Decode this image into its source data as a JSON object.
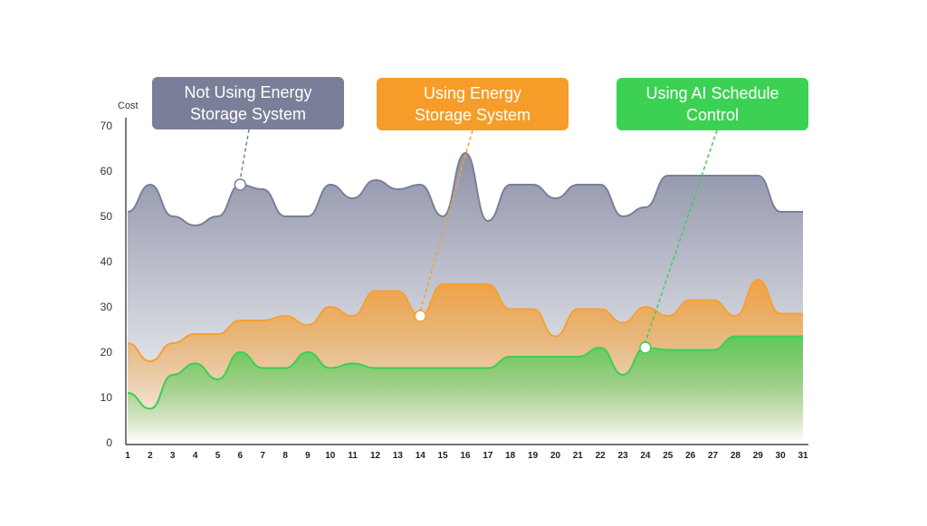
{
  "chart_data": {
    "type": "area",
    "ylabel": "Cost",
    "ylim": [
      0,
      70
    ],
    "yticks": [
      0,
      10,
      20,
      30,
      40,
      50,
      60,
      70
    ],
    "x": [
      1,
      2,
      3,
      4,
      5,
      6,
      7,
      8,
      9,
      10,
      11,
      12,
      13,
      14,
      15,
      16,
      17,
      18,
      19,
      20,
      21,
      22,
      23,
      24,
      25,
      26,
      27,
      28,
      29,
      30,
      31
    ],
    "grid": false,
    "series": [
      {
        "name": "Not Using Energy Storage System",
        "color": "#7a7f99",
        "values": [
          51,
          57,
          50,
          48,
          50,
          57,
          56,
          50,
          50,
          57,
          54,
          58,
          56,
          57,
          50,
          64,
          49,
          57,
          57,
          54,
          57,
          57,
          50,
          52,
          59,
          59,
          59,
          59,
          59,
          51,
          51
        ],
        "marker_x": 6
      },
      {
        "name": "Using Energy Storage System",
        "color": "#f6a035",
        "values": [
          22,
          18,
          22,
          24,
          24,
          27,
          27,
          28,
          26,
          30,
          28,
          33.5,
          33.5,
          28,
          35,
          35,
          35,
          29.5,
          29.5,
          23.5,
          29.5,
          29.5,
          26.5,
          30,
          28,
          31.5,
          31.5,
          28,
          36,
          28.5,
          28.5
        ],
        "marker_x": 14
      },
      {
        "name": "Using AI Schedule Control",
        "color": "#3ccf53",
        "values": [
          11,
          7.5,
          15,
          17.5,
          14,
          20,
          16.5,
          16.5,
          20,
          16.5,
          17.5,
          16.5,
          16.5,
          16.5,
          16.5,
          16.5,
          16.5,
          19,
          19,
          19,
          19,
          21,
          15,
          21,
          20.5,
          20.5,
          20.5,
          23.5,
          23.5,
          23.5,
          23.5
        ],
        "marker_x": 24
      }
    ]
  },
  "callouts": [
    {
      "text": "Not Using Energy Storage System",
      "line1": "Not Using Energy",
      "line2": "Storage System",
      "color": "#7a7f99"
    },
    {
      "text": "Using Energy Storage System",
      "line1": "Using Energy",
      "line2": "Storage System",
      "color": "#f59d28"
    },
    {
      "text": "Using AI Schedule Control",
      "line1": "Using AI Schedule",
      "line2": "Control",
      "color": "#3dd154"
    }
  ]
}
